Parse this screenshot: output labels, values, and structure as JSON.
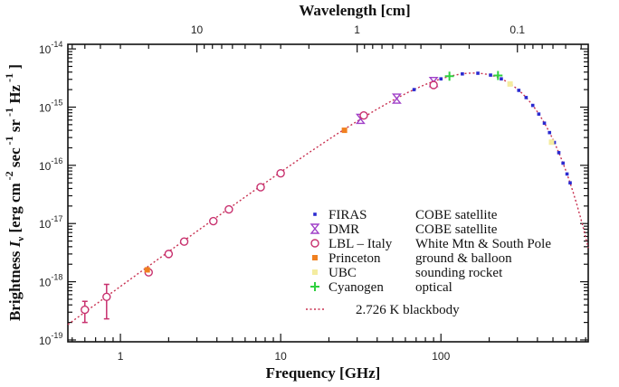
{
  "chart_data": {
    "type": "scatter",
    "title": "",
    "xlabel": "Frequency [GHz]",
    "x2label": "Wavelength [cm]",
    "ylabel": "Brightness",
    "ylabel_symbol": "I",
    "ylabel_subscript": "ν",
    "ylabel_units": [
      "[erg cm",
      "-2",
      " sec",
      "-1",
      " sr",
      "-1",
      " Hz",
      "-1",
      "]"
    ],
    "xscale": "log",
    "yscale": "log",
    "xlim": [
      0.47,
      830
    ],
    "ylim": [
      9.3e-20,
      1.2e-14
    ],
    "xticks": [
      {
        "v": 1,
        "label": "1"
      },
      {
        "v": 10,
        "label": "10"
      },
      {
        "v": 100,
        "label": "100"
      }
    ],
    "x2ticks": [
      {
        "v": 10,
        "label": "10"
      },
      {
        "v": 1,
        "label": "1"
      },
      {
        "v": 0.1,
        "label": "0.1"
      }
    ],
    "yticks": [
      {
        "v": -14,
        "label": "10",
        "exp": "-14"
      },
      {
        "v": -15,
        "label": "10",
        "exp": "-15"
      },
      {
        "v": -16,
        "label": "10",
        "exp": "-16"
      },
      {
        "v": -17,
        "label": "10",
        "exp": "-17"
      },
      {
        "v": -18,
        "label": "10",
        "exp": "-18"
      },
      {
        "v": -19,
        "label": "10",
        "exp": "-19"
      }
    ],
    "grid": false,
    "legend_position": "bottom-right",
    "series": [
      {
        "name": "FIRAS",
        "description": "COBE satellite",
        "marker": "square-dot",
        "color": "#2a2ad0",
        "x": [
          68,
          100,
          136,
          170,
          204,
          238,
          272,
          306,
          340,
          374,
          408,
          442,
          476,
          510,
          544,
          578,
          612,
          640
        ],
        "y": [
          2e-15,
          3.06e-15,
          3.72e-15,
          3.82e-15,
          3.55e-15,
          3.06e-15,
          2.49e-15,
          1.94e-15,
          1.46e-15,
          1.07e-15,
          7.6e-16,
          5.3e-16,
          3.65e-16,
          2.47e-16,
          1.65e-16,
          1.09e-16,
          7.1e-17,
          5e-17
        ]
      },
      {
        "name": "DMR",
        "description": "COBE satellite",
        "marker": "hourglass",
        "color": "#a040c8",
        "x": [
          31.5,
          53,
          90
        ],
        "y": [
          6.3e-16,
          1.4e-15,
          2.7e-15
        ]
      },
      {
        "name": "LBL – Italy",
        "description": "White Mtn & South Pole",
        "marker": "circle",
        "color": "#c8306e",
        "x": [
          0.6,
          0.82,
          1.5,
          2.0,
          2.5,
          3.8,
          4.75,
          7.5,
          10,
          33,
          90
        ],
        "y": [
          3.3e-19,
          5.5e-19,
          1.45e-18,
          3e-18,
          4.9e-18,
          1.1e-17,
          1.75e-17,
          4.2e-17,
          7.3e-17,
          7.2e-16,
          2.4e-15
        ],
        "yerr_low": [
          2e-19,
          2.3e-19,
          null,
          null,
          null,
          null,
          null,
          null,
          null,
          null,
          null
        ],
        "yerr_high": [
          4.6e-19,
          9e-19,
          null,
          null,
          null,
          null,
          null,
          null,
          null,
          null,
          null
        ]
      },
      {
        "name": "Princeton",
        "description": "ground & balloon",
        "marker": "square",
        "color": "#f08020",
        "x": [
          1.47,
          25
        ],
        "y": [
          1.6e-18,
          4e-16
        ]
      },
      {
        "name": "UBC",
        "description": "sounding rocket",
        "marker": "square",
        "color": "#f4eca0",
        "x": [
          270,
          490
        ],
        "y": [
          2.5e-15,
          2.5e-16
        ]
      },
      {
        "name": "Cyanogen",
        "description": "optical",
        "marker": "plus",
        "color": "#30d040",
        "x": [
          113,
          227
        ],
        "y": [
          3.4e-15,
          3.5e-15
        ]
      }
    ],
    "model": {
      "name": "2.726 K blackbody",
      "temperature_K": 2.726,
      "style": "dotted",
      "color": "#c83050"
    }
  }
}
